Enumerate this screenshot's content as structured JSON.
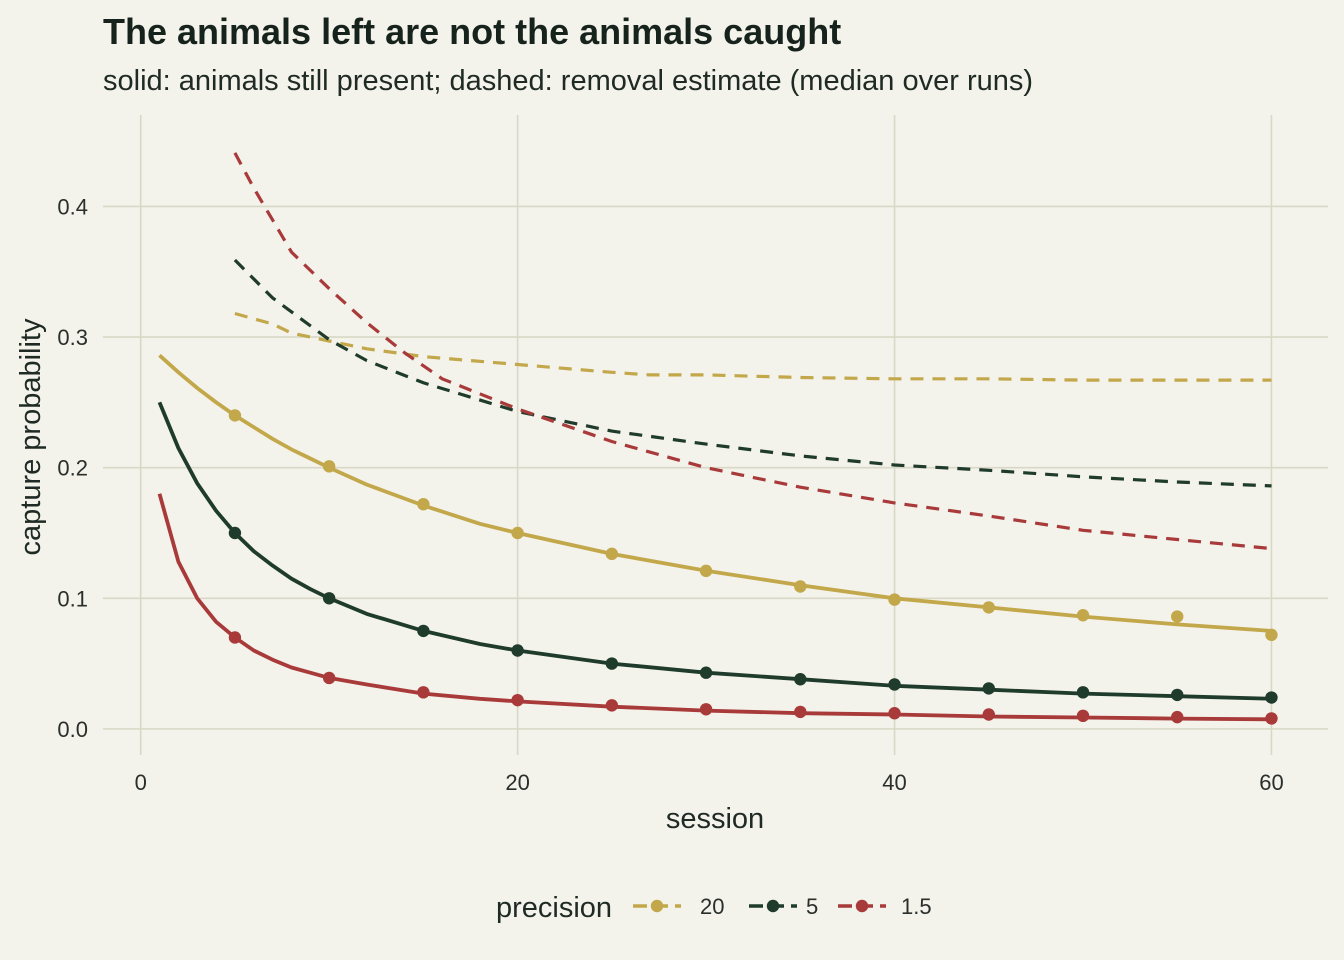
{
  "chart_data": {
    "type": "line",
    "title": "The animals left are not the animals caught",
    "subtitle": "solid: animals still present; dashed: removal estimate (median over runs)",
    "xlabel": "session",
    "ylabel": "capture probability",
    "xlim": [
      -2,
      63
    ],
    "ylim": [
      -0.02,
      0.47
    ],
    "x_ticks": [
      0,
      20,
      40,
      60
    ],
    "x_tick_labels": [
      "0",
      "20",
      "40",
      "60"
    ],
    "y_ticks": [
      0.0,
      0.1,
      0.2,
      0.3,
      0.4
    ],
    "y_tick_labels": [
      "0.0",
      "0.1",
      "0.2",
      "0.3",
      "0.4"
    ],
    "grid": true,
    "legend": {
      "title": "precision",
      "position": "bottom"
    },
    "series": [
      {
        "name": "20",
        "color": "#c2a84a",
        "present_line": {
          "x": [
            1,
            2,
            3,
            4,
            5,
            6,
            7,
            8,
            9,
            10,
            12,
            15,
            18,
            20,
            25,
            30,
            35,
            40,
            45,
            50,
            55,
            60
          ],
          "y": [
            0.286,
            0.273,
            0.261,
            0.25,
            0.24,
            0.231,
            0.222,
            0.214,
            0.207,
            0.2,
            0.187,
            0.171,
            0.157,
            0.15,
            0.134,
            0.121,
            0.11,
            0.1,
            0.093,
            0.086,
            0.08,
            0.075
          ]
        },
        "present_points": {
          "x": [
            5,
            10,
            15,
            20,
            25,
            30,
            35,
            40,
            45,
            50,
            55,
            60
          ],
          "y": [
            0.24,
            0.201,
            0.172,
            0.15,
            0.134,
            0.121,
            0.109,
            0.099,
            0.093,
            0.087,
            0.086,
            0.072
          ]
        },
        "estimate": {
          "x": [
            5,
            7,
            8,
            10,
            12,
            15,
            20,
            25,
            27,
            30,
            35,
            40,
            45,
            50,
            55,
            60
          ],
          "y": [
            0.318,
            0.31,
            0.303,
            0.297,
            0.291,
            0.285,
            0.279,
            0.273,
            0.271,
            0.271,
            0.269,
            0.268,
            0.268,
            0.267,
            0.267,
            0.267
          ]
        }
      },
      {
        "name": "5",
        "color": "#1f3b2b",
        "present_line": {
          "x": [
            1,
            2,
            3,
            4,
            5,
            6,
            7,
            8,
            9,
            10,
            12,
            15,
            18,
            20,
            25,
            30,
            35,
            40,
            45,
            50,
            55,
            60
          ],
          "y": [
            0.25,
            0.215,
            0.188,
            0.167,
            0.15,
            0.136,
            0.125,
            0.115,
            0.107,
            0.1,
            0.088,
            0.075,
            0.065,
            0.06,
            0.05,
            0.043,
            0.038,
            0.033,
            0.03,
            0.027,
            0.025,
            0.023
          ]
        },
        "present_points": {
          "x": [
            5,
            10,
            15,
            20,
            25,
            30,
            35,
            40,
            45,
            50,
            55,
            60
          ],
          "y": [
            0.15,
            0.1,
            0.075,
            0.06,
            0.05,
            0.043,
            0.038,
            0.034,
            0.031,
            0.028,
            0.026,
            0.024
          ]
        },
        "estimate": {
          "x": [
            5,
            7,
            10,
            12,
            15,
            20,
            25,
            30,
            35,
            40,
            45,
            50,
            55,
            60
          ],
          "y": [
            0.359,
            0.33,
            0.298,
            0.282,
            0.265,
            0.243,
            0.228,
            0.218,
            0.209,
            0.202,
            0.198,
            0.193,
            0.189,
            0.186
          ]
        }
      },
      {
        "name": "1.5",
        "color": "#a83a3a",
        "present_line": {
          "x": [
            1,
            2,
            3,
            4,
            5,
            6,
            7,
            8,
            9,
            10,
            12,
            15,
            18,
            20,
            25,
            30,
            35,
            40,
            45,
            50,
            55,
            60
          ],
          "y": [
            0.18,
            0.128,
            0.1,
            0.082,
            0.07,
            0.06,
            0.053,
            0.047,
            0.043,
            0.039,
            0.034,
            0.027,
            0.023,
            0.021,
            0.017,
            0.014,
            0.012,
            0.011,
            0.0095,
            0.0087,
            0.0079,
            0.0073
          ]
        },
        "present_points": {
          "x": [
            5,
            10,
            15,
            20,
            25,
            30,
            35,
            40,
            45,
            50,
            55,
            60
          ],
          "y": [
            0.07,
            0.039,
            0.028,
            0.022,
            0.018,
            0.015,
            0.013,
            0.012,
            0.011,
            0.01,
            0.009,
            0.008
          ]
        },
        "estimate": {
          "x": [
            5,
            6,
            8,
            10,
            12,
            14,
            16,
            20,
            25,
            30,
            35,
            40,
            45,
            50,
            55,
            60
          ],
          "y": [
            0.441,
            0.414,
            0.365,
            0.337,
            0.311,
            0.288,
            0.268,
            0.245,
            0.22,
            0.2,
            0.185,
            0.173,
            0.163,
            0.152,
            0.145,
            0.138
          ]
        }
      }
    ]
  }
}
